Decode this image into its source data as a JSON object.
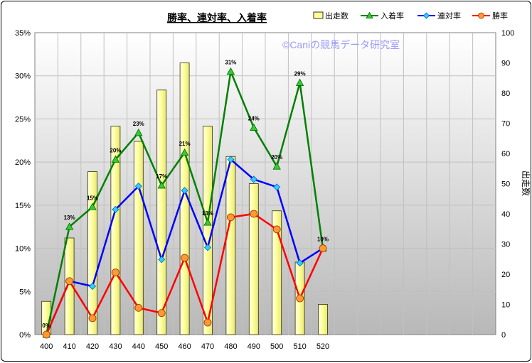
{
  "chart_data": {
    "type": "bar+line",
    "title": "勝率、連対率、入着率",
    "watermark": "©Caniの競馬データ研究室",
    "categories": [
      "400",
      "410",
      "420",
      "430",
      "440",
      "450",
      "460",
      "470",
      "480",
      "490",
      "500",
      "510",
      "520"
    ],
    "y_left": {
      "min": 0,
      "max": 0.35,
      "ticks": [
        "0%",
        "5%",
        "10%",
        "15%",
        "20%",
        "25%",
        "30%",
        "35%"
      ]
    },
    "y_right": {
      "label": "出走数",
      "min": 0,
      "max": 100,
      "ticks": [
        "0",
        "10",
        "20",
        "30",
        "40",
        "50",
        "60",
        "70",
        "80",
        "90",
        "100"
      ]
    },
    "grid": true,
    "legend_position": "top-right",
    "series": [
      {
        "name": "出走数",
        "kind": "bar",
        "axis": "right",
        "color": "#ffff99",
        "values": [
          11,
          32,
          54,
          69,
          64,
          81,
          90,
          69,
          59,
          50,
          41,
          24,
          10
        ]
      },
      {
        "name": "入着率",
        "kind": "line",
        "axis": "left",
        "color": "#008000",
        "marker": "triangle",
        "values": [
          0.0,
          0.125,
          0.148,
          0.203,
          0.234,
          0.173,
          0.211,
          0.13,
          0.305,
          0.24,
          0.195,
          0.292,
          0.1
        ],
        "labels": [
          "0%",
          "13%",
          "15%",
          "20%",
          "23%",
          "17%",
          "21%",
          "13%",
          "31%",
          "24%",
          "20%",
          "29%",
          "10%"
        ]
      },
      {
        "name": "連対率",
        "kind": "line",
        "axis": "left",
        "color": "#0000ff",
        "marker": "diamond",
        "values": [
          0.0,
          0.062,
          0.056,
          0.145,
          0.172,
          0.087,
          0.167,
          0.101,
          0.203,
          0.18,
          0.171,
          0.083,
          0.1
        ]
      },
      {
        "name": "勝率",
        "kind": "line",
        "axis": "left",
        "color": "#ff0000",
        "marker": "circle",
        "values": [
          0.0,
          0.062,
          0.019,
          0.072,
          0.031,
          0.025,
          0.089,
          0.014,
          0.136,
          0.14,
          0.122,
          0.042,
          0.1
        ]
      }
    ]
  }
}
